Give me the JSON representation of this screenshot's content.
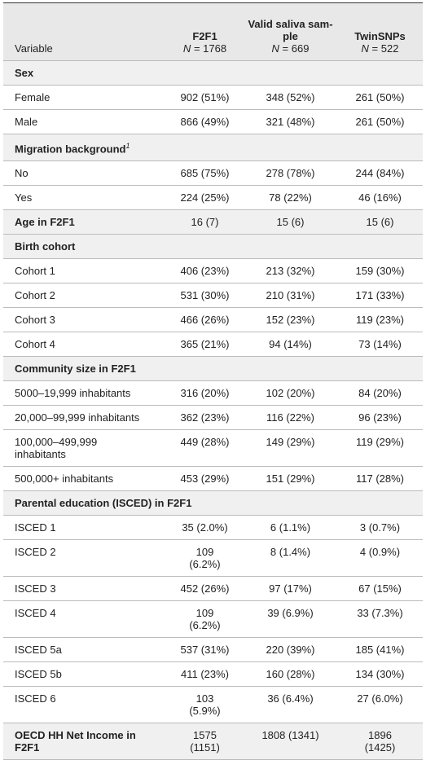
{
  "table": {
    "header": {
      "variable": "Variable",
      "n_symbol": "N",
      "columns": [
        {
          "title": "F2F1",
          "n": "= 1768"
        },
        {
          "title": "Valid saliva sam-ple",
          "n": "= 669"
        },
        {
          "title": "TwinSNPs",
          "n": "= 522"
        }
      ]
    },
    "sections": [
      {
        "title": "Sex",
        "rows": [
          {
            "label": "Female",
            "values": [
              "902 (51%)",
              "348 (52%)",
              "261 (50%)"
            ]
          },
          {
            "label": "Male",
            "values": [
              "866 (49%)",
              "321 (48%)",
              "261 (50%)"
            ]
          }
        ]
      },
      {
        "title": "Migration background",
        "note": "1",
        "rows": [
          {
            "label": "No",
            "values": [
              "685 (75%)",
              "278 (78%)",
              "244 (84%)"
            ]
          },
          {
            "label": "Yes",
            "values": [
              "224 (25%)",
              "78 (22%)",
              "46 (16%)"
            ]
          }
        ]
      },
      {
        "title": "Age in F2F1",
        "values": [
          "16 (7)",
          "15 (6)",
          "15 (6)"
        ]
      },
      {
        "title": "Birth cohort",
        "rows": [
          {
            "label": "Cohort 1",
            "values": [
              "406 (23%)",
              "213 (32%)",
              "159 (30%)"
            ]
          },
          {
            "label": "Cohort 2",
            "values": [
              "531 (30%)",
              "210 (31%)",
              "171 (33%)"
            ]
          },
          {
            "label": "Cohort 3",
            "values": [
              "466 (26%)",
              "152 (23%)",
              "119 (23%)"
            ]
          },
          {
            "label": "Cohort 4",
            "values": [
              "365 (21%)",
              "94 (14%)",
              "73 (14%)"
            ]
          }
        ]
      },
      {
        "title": "Community size in F2F1",
        "rows": [
          {
            "label": "5000–19,999 inhabitants",
            "values": [
              "316 (20%)",
              "102 (20%)",
              "84 (20%)"
            ]
          },
          {
            "label": "20,000–99,999 inhabitants",
            "values": [
              "362 (23%)",
              "116 (22%)",
              "96 (23%)"
            ]
          },
          {
            "label": "100,000–499,999 inhabitants",
            "values": [
              "449 (28%)",
              "149 (29%)",
              "119 (29%)"
            ]
          },
          {
            "label": "500,000+ inhabitants",
            "values": [
              "453 (29%)",
              "151 (29%)",
              "117 (28%)"
            ]
          }
        ]
      },
      {
        "title": "Parental education (ISCED) in F2F1",
        "rows": [
          {
            "label": "ISCED 1",
            "values": [
              "35 (2.0%)",
              "6 (1.1%)",
              "3 (0.7%)"
            ]
          },
          {
            "label": "ISCED 2",
            "values": [
              "109 (6.2%)",
              "8 (1.4%)",
              "4 (0.9%)"
            ]
          },
          {
            "label": "ISCED 3",
            "values": [
              "452 (26%)",
              "97 (17%)",
              "67 (15%)"
            ]
          },
          {
            "label": "ISCED 4",
            "values": [
              "109 (6.2%)",
              "39 (6.9%)",
              "33 (7.3%)"
            ]
          },
          {
            "label": "ISCED 5a",
            "values": [
              "537 (31%)",
              "220 (39%)",
              "185 (41%)"
            ]
          },
          {
            "label": "ISCED 5b",
            "values": [
              "411 (23%)",
              "160 (28%)",
              "134 (30%)"
            ]
          },
          {
            "label": "ISCED 6",
            "values": [
              "103 (5.9%)",
              "36 (6.4%)",
              "27 (6.0%)"
            ]
          }
        ]
      },
      {
        "title": "OECD HH Net Income in F2F1",
        "values": [
          "1575 (1151)",
          "1808 (1341)",
          "1896 (1425)"
        ]
      }
    ]
  }
}
